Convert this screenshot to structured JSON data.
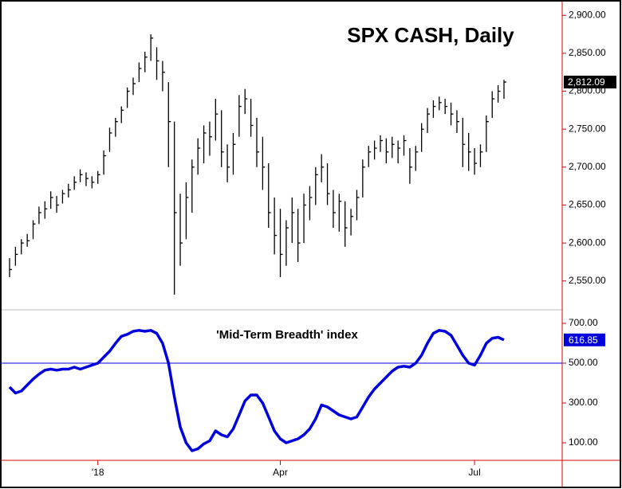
{
  "chart_data": [
    {
      "type": "ohlc",
      "title": "SPX CASH, Daily",
      "color": "#000000",
      "ylim": [
        2513,
        2915
      ],
      "yticks": [
        {
          "value": 2550,
          "label": "2,550.00"
        },
        {
          "value": 2600,
          "label": "2,600.00"
        },
        {
          "value": 2650,
          "label": "2,650.00"
        },
        {
          "value": 2700,
          "label": "2,700.00"
        },
        {
          "value": 2750,
          "label": "2,750.00"
        },
        {
          "value": 2800,
          "label": "2,800.00"
        },
        {
          "value": 2850,
          "label": "2,850.00"
        },
        {
          "value": 2900,
          "label": "2,900.00"
        }
      ],
      "last_label": "2,812.09",
      "high": [
        2580,
        2595,
        2605,
        2612,
        2630,
        2648,
        2655,
        2668,
        2662,
        2670,
        2678,
        2688,
        2697,
        2693,
        2688,
        2695,
        2722,
        2752,
        2765,
        2780,
        2805,
        2818,
        2838,
        2852,
        2875,
        2858,
        2840,
        2812,
        2760,
        2665,
        2680,
        2710,
        2738,
        2755,
        2760,
        2790,
        2775,
        2730,
        2745,
        2795,
        2803,
        2790,
        2765,
        2740,
        2705,
        2660,
        2645,
        2630,
        2660,
        2645,
        2665,
        2675,
        2700,
        2717,
        2705,
        2670,
        2665,
        2655,
        2645,
        2670,
        2710,
        2728,
        2735,
        2742,
        2738,
        2740,
        2735,
        2742,
        2725,
        2728,
        2758,
        2778,
        2788,
        2793,
        2790,
        2785,
        2775,
        2765,
        2745,
        2725,
        2730,
        2768,
        2800,
        2808,
        2815
      ],
      "low": [
        2555,
        2570,
        2585,
        2595,
        2605,
        2625,
        2632,
        2645,
        2640,
        2652,
        2660,
        2670,
        2680,
        2675,
        2672,
        2678,
        2690,
        2720,
        2740,
        2758,
        2778,
        2795,
        2812,
        2825,
        2840,
        2815,
        2800,
        2700,
        2532,
        2570,
        2605,
        2640,
        2690,
        2705,
        2715,
        2735,
        2700,
        2680,
        2690,
        2740,
        2770,
        2740,
        2700,
        2670,
        2620,
        2585,
        2555,
        2570,
        2600,
        2575,
        2600,
        2630,
        2650,
        2680,
        2650,
        2620,
        2615,
        2595,
        2610,
        2630,
        2660,
        2700,
        2710,
        2720,
        2705,
        2712,
        2705,
        2715,
        2678,
        2695,
        2720,
        2745,
        2765,
        2775,
        2770,
        2755,
        2745,
        2700,
        2695,
        2690,
        2700,
        2720,
        2765,
        2785,
        2790
      ],
      "close": [
        2565,
        2585,
        2600,
        2603,
        2625,
        2640,
        2645,
        2660,
        2650,
        2665,
        2670,
        2680,
        2690,
        2685,
        2680,
        2690,
        2715,
        2745,
        2760,
        2775,
        2800,
        2810,
        2830,
        2845,
        2870,
        2840,
        2825,
        2760,
        2640,
        2600,
        2660,
        2700,
        2725,
        2745,
        2740,
        2770,
        2720,
        2700,
        2730,
        2780,
        2790,
        2755,
        2720,
        2700,
        2640,
        2610,
        2585,
        2620,
        2640,
        2600,
        2650,
        2660,
        2690,
        2700,
        2665,
        2640,
        2655,
        2620,
        2635,
        2660,
        2700,
        2720,
        2725,
        2735,
        2720,
        2730,
        2725,
        2735,
        2700,
        2720,
        2750,
        2770,
        2780,
        2785,
        2780,
        2770,
        2760,
        2730,
        2720,
        2705,
        2720,
        2760,
        2790,
        2800,
        2812.09
      ]
    },
    {
      "type": "line",
      "title": "'Mid-Term Breadth' index",
      "color": "#0000dd",
      "ylim": [
        12,
        764
      ],
      "yticks": [
        {
          "value": 100,
          "label": "100.00"
        },
        {
          "value": 300,
          "label": "300.00"
        },
        {
          "value": 500,
          "label": "500.00"
        },
        {
          "value": 700,
          "label": "700.00"
        }
      ],
      "hline": 500,
      "last_label": "616.85",
      "categories": [
        null,
        null,
        null,
        null,
        null,
        null,
        null,
        null,
        null,
        null,
        null,
        null,
        null,
        null,
        null,
        "'18",
        null,
        null,
        null,
        null,
        null,
        null,
        null,
        null,
        null,
        null,
        null,
        null,
        null,
        null,
        null,
        null,
        null,
        null,
        null,
        null,
        null,
        null,
        null,
        null,
        null,
        null,
        null,
        null,
        null,
        null,
        "Apr",
        null,
        null,
        null,
        null,
        null,
        null,
        null,
        null,
        null,
        null,
        null,
        null,
        null,
        null,
        null,
        null,
        null,
        null,
        null,
        null,
        null,
        null,
        null,
        null,
        null,
        null,
        null,
        null,
        null,
        null,
        null,
        null,
        "Jul",
        null,
        null,
        null,
        null,
        null
      ],
      "values": [
        380,
        350,
        360,
        390,
        420,
        445,
        465,
        470,
        465,
        470,
        470,
        480,
        470,
        480,
        490,
        500,
        530,
        560,
        600,
        635,
        645,
        660,
        665,
        660,
        665,
        650,
        600,
        500,
        330,
        180,
        100,
        60,
        70,
        95,
        110,
        160,
        140,
        130,
        170,
        240,
        310,
        340,
        340,
        300,
        230,
        160,
        120,
        100,
        110,
        120,
        140,
        170,
        220,
        290,
        280,
        260,
        240,
        230,
        220,
        230,
        280,
        330,
        370,
        400,
        430,
        460,
        480,
        485,
        480,
        500,
        540,
        600,
        650,
        665,
        660,
        640,
        590,
        540,
        500,
        490,
        540,
        600,
        625,
        630,
        616.85
      ]
    }
  ]
}
